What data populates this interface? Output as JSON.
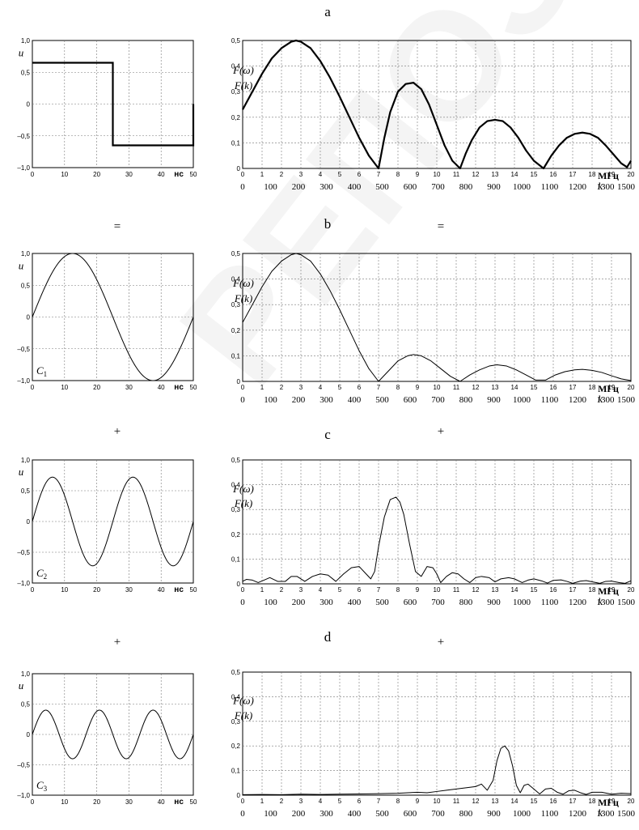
{
  "watermark": "РЕПОЗИТОРИЙ",
  "panel_labels": [
    "a",
    "b",
    "c",
    "d"
  ],
  "operators": {
    "row_b_left": "=",
    "row_b_right": "=",
    "row_c_left": "+",
    "row_c_right": "+",
    "row_d_left": "+",
    "row_d_right": "+"
  },
  "chart_data": [
    {
      "id": "a-time",
      "type": "line",
      "ylabel": "u",
      "unit": "нс",
      "xlim": [
        0,
        50
      ],
      "ylim": [
        -1.0,
        1.0
      ],
      "yticks": [
        "1,0",
        "0,5",
        "0",
        "–0,5",
        "–1,0"
      ],
      "xticks": [
        "0",
        "10",
        "20",
        "30",
        "40",
        "50"
      ],
      "grid": true,
      "series": [
        {
          "x": [
            0,
            25,
            25,
            50,
            50
          ],
          "y": [
            0.65,
            0.65,
            -0.65,
            -0.65,
            0.0
          ]
        }
      ],
      "stroke_width": 2.2
    },
    {
      "id": "a-spectrum",
      "type": "line",
      "ylabel": [
        "F(ω)",
        "F(k)"
      ],
      "unit": "МГц",
      "secondary_xlabel": "k",
      "xlim": [
        0,
        20
      ],
      "ylim": [
        0,
        0.5
      ],
      "yticks": [
        "0,5",
        "0,4",
        "0,3",
        "0,2",
        "0,1",
        "0"
      ],
      "xticks": [
        "0",
        "1",
        "2",
        "3",
        "4",
        "5",
        "6",
        "7",
        "8",
        "9",
        "10",
        "11",
        "12",
        "13",
        "14",
        "15",
        "16",
        "17",
        "18",
        "19",
        "20"
      ],
      "k_ticks": [
        "0",
        "100",
        "200",
        "300",
        "400",
        "500",
        "600",
        "700",
        "800",
        "900",
        "1000",
        "1100",
        "1200",
        "1300",
        "1500"
      ],
      "grid": true,
      "series": [
        {
          "x": [
            0,
            0.5,
            1,
            1.5,
            2,
            2.5,
            2.75,
            3,
            3.5,
            4,
            4.5,
            5,
            5.5,
            6,
            6.5,
            7,
            7.3,
            7.6,
            8,
            8.4,
            8.8,
            9.2,
            9.6,
            10,
            10.4,
            10.8,
            11.2,
            11.5,
            11.8,
            12.2,
            12.6,
            13,
            13.4,
            13.8,
            14.2,
            14.6,
            15,
            15.5,
            15.9,
            16.3,
            16.7,
            17.1,
            17.5,
            17.9,
            18.3,
            18.7,
            19.1,
            19.5,
            19.8,
            20
          ],
          "y": [
            0.23,
            0.3,
            0.37,
            0.43,
            0.47,
            0.495,
            0.5,
            0.495,
            0.47,
            0.42,
            0.355,
            0.28,
            0.2,
            0.12,
            0.05,
            0,
            0.12,
            0.22,
            0.3,
            0.33,
            0.335,
            0.31,
            0.25,
            0.17,
            0.09,
            0.03,
            0,
            0.06,
            0.11,
            0.16,
            0.185,
            0.19,
            0.185,
            0.16,
            0.12,
            0.07,
            0.03,
            0,
            0.05,
            0.09,
            0.12,
            0.135,
            0.14,
            0.135,
            0.12,
            0.09,
            0.055,
            0.02,
            0.005,
            0.03
          ]
        }
      ],
      "stroke_width": 2.2
    },
    {
      "id": "b-time",
      "type": "line",
      "ylabel": "u",
      "unit": "нс",
      "series_label": "C1",
      "xlim": [
        0,
        50
      ],
      "ylim": [
        -1.0,
        1.0
      ],
      "yticks": [
        "1,0",
        "0,5",
        "0",
        "–0,5",
        "–1,0"
      ],
      "xticks": [
        "0",
        "10",
        "20",
        "30",
        "40",
        "50"
      ],
      "grid": true,
      "series": [
        {
          "function": "sine",
          "amplitude": 1.0,
          "period": 50
        }
      ],
      "stroke_width": 1
    },
    {
      "id": "b-spectrum",
      "type": "line",
      "ylabel": [
        "F(ω)",
        "F(k)"
      ],
      "unit": "МГц",
      "secondary_xlabel": "k",
      "xlim": [
        0,
        20
      ],
      "ylim": [
        0,
        0.5
      ],
      "yticks": [
        "0,5",
        "0,4",
        "0,3",
        "0,2",
        "0,1",
        "0"
      ],
      "xticks": [
        "0",
        "1",
        "2",
        "3",
        "4",
        "5",
        "6",
        "7",
        "8",
        "9",
        "10",
        "11",
        "12",
        "13",
        "14",
        "15",
        "16",
        "17",
        "18",
        "19",
        "20"
      ],
      "k_ticks": [
        "0",
        "100",
        "200",
        "300",
        "400",
        "500",
        "600",
        "700",
        "800",
        "900",
        "1000",
        "1100",
        "1200",
        "1300",
        "1500"
      ],
      "grid": true,
      "series": [
        {
          "x": [
            0,
            0.5,
            1,
            1.5,
            2,
            2.5,
            2.75,
            3,
            3.5,
            4,
            4.5,
            5,
            5.5,
            6,
            6.5,
            7,
            7.5,
            8,
            8.5,
            8.8,
            9.2,
            9.7,
            10.2,
            10.7,
            11.2,
            11.7,
            12.2,
            12.7,
            13.1,
            13.6,
            14.1,
            14.6,
            15.1,
            15.6,
            16.1,
            16.6,
            17.1,
            17.5,
            18,
            18.5,
            19,
            19.5,
            20
          ],
          "y": [
            0.23,
            0.3,
            0.37,
            0.43,
            0.47,
            0.495,
            0.5,
            0.495,
            0.47,
            0.42,
            0.355,
            0.28,
            0.2,
            0.12,
            0.05,
            0,
            0.04,
            0.08,
            0.1,
            0.105,
            0.1,
            0.08,
            0.05,
            0.02,
            0,
            0.025,
            0.045,
            0.06,
            0.065,
            0.06,
            0.045,
            0.025,
            0.005,
            0.005,
            0.025,
            0.038,
            0.045,
            0.047,
            0.043,
            0.035,
            0.022,
            0.01,
            0.003
          ]
        }
      ],
      "stroke_width": 1
    },
    {
      "id": "c-time",
      "type": "line",
      "ylabel": "u",
      "unit": "нс",
      "series_label": "C2",
      "xlim": [
        0,
        50
      ],
      "ylim": [
        -1.0,
        1.0
      ],
      "yticks": [
        "1,0",
        "0,5",
        "0",
        "–0,5",
        "–1,0"
      ],
      "xticks": [
        "0",
        "10",
        "20",
        "30",
        "40",
        "50"
      ],
      "grid": true,
      "series": [
        {
          "function": "sine",
          "amplitude": 0.72,
          "period": 25
        }
      ],
      "stroke_width": 1
    },
    {
      "id": "c-spectrum",
      "type": "line",
      "ylabel": [
        "F(ω)",
        "F(k)"
      ],
      "unit": "МГц",
      "secondary_xlabel": "k",
      "xlim": [
        0,
        20
      ],
      "ylim": [
        0,
        0.5
      ],
      "yticks": [
        "0,5",
        "0,4",
        "0,3",
        "0,2",
        "0,1",
        "0"
      ],
      "xticks": [
        "0",
        "1",
        "2",
        "3",
        "4",
        "5",
        "6",
        "7",
        "8",
        "9",
        "10",
        "11",
        "12",
        "13",
        "14",
        "15",
        "16",
        "17",
        "18",
        "19",
        "20"
      ],
      "k_ticks": [
        "0",
        "100",
        "200",
        "300",
        "400",
        "500",
        "600",
        "700",
        "800",
        "900",
        "1000",
        "1100",
        "1200",
        "1300",
        "1500"
      ],
      "grid": true,
      "series": [
        {
          "x": [
            0,
            0.2,
            0.5,
            0.8,
            1.1,
            1.4,
            1.8,
            2.2,
            2.5,
            2.8,
            3.2,
            3.6,
            4,
            4.4,
            4.8,
            5.2,
            5.6,
            6,
            6.3,
            6.6,
            6.8,
            7,
            7.3,
            7.6,
            7.9,
            8.1,
            8.3,
            8.6,
            8.9,
            9.2,
            9.5,
            9.8,
            10,
            10.2,
            10.5,
            10.8,
            11.1,
            11.4,
            11.7,
            12,
            12.3,
            12.7,
            13,
            13.3,
            13.7,
            14,
            14.4,
            14.7,
            15,
            15.4,
            15.7,
            16,
            16.4,
            16.7,
            17,
            17.4,
            17.7,
            18,
            18.4,
            18.7,
            19,
            19.4,
            19.7,
            20
          ],
          "y": [
            0.01,
            0.018,
            0.015,
            0.005,
            0.015,
            0.025,
            0.01,
            0.01,
            0.03,
            0.03,
            0.01,
            0.03,
            0.04,
            0.035,
            0.01,
            0.04,
            0.065,
            0.07,
            0.045,
            0.02,
            0.05,
            0.15,
            0.27,
            0.34,
            0.35,
            0.33,
            0.28,
            0.16,
            0.05,
            0.03,
            0.07,
            0.065,
            0.04,
            0.005,
            0.03,
            0.045,
            0.04,
            0.02,
            0.005,
            0.025,
            0.03,
            0.025,
            0.008,
            0.02,
            0.025,
            0.02,
            0.005,
            0.015,
            0.02,
            0.012,
            0.003,
            0.014,
            0.016,
            0.01,
            0.002,
            0.011,
            0.013,
            0.008,
            0.002,
            0.01,
            0.011,
            0.005,
            0.002,
            0.012
          ]
        }
      ],
      "stroke_width": 1
    },
    {
      "id": "d-time",
      "type": "line",
      "ylabel": "u",
      "unit": "нс",
      "series_label": "C3",
      "xlim": [
        0,
        50
      ],
      "ylim": [
        -1.0,
        1.0
      ],
      "yticks": [
        "1,0",
        "0,5",
        "0",
        "–0,5",
        "–1,0"
      ],
      "xticks": [
        "0",
        "10",
        "20",
        "30",
        "40",
        "50"
      ],
      "grid": true,
      "series": [
        {
          "function": "sine",
          "amplitude": 0.4,
          "period": 16.667
        }
      ],
      "stroke_width": 1
    },
    {
      "id": "d-spectrum",
      "type": "line",
      "ylabel": [
        "F(ω)",
        "F(k)"
      ],
      "unit": "МГц",
      "secondary_xlabel": "k",
      "xlim": [
        0,
        20
      ],
      "ylim": [
        0,
        0.5
      ],
      "yticks": [
        "0,5",
        "0,4",
        "0,3",
        "0,2",
        "0,1",
        "0"
      ],
      "xticks": [
        "0",
        "1",
        "2",
        "3",
        "4",
        "5",
        "6",
        "7",
        "8",
        "9",
        "10",
        "11",
        "12",
        "13",
        "14",
        "15",
        "16",
        "17",
        "18",
        "19",
        "20"
      ],
      "k_ticks": [
        "0",
        "100",
        "200",
        "300",
        "400",
        "500",
        "600",
        "700",
        "800",
        "900",
        "1000",
        "1100",
        "1200",
        "1300",
        "1500"
      ],
      "grid": true,
      "series": [
        {
          "x": [
            0,
            1,
            2,
            3,
            4,
            5,
            6,
            7,
            8,
            8.5,
            9,
            9.5,
            10,
            10.5,
            11,
            11.5,
            12,
            12.3,
            12.6,
            12.9,
            13.1,
            13.3,
            13.5,
            13.7,
            13.9,
            14.1,
            14.3,
            14.5,
            14.7,
            15,
            15.3,
            15.6,
            15.9,
            16.2,
            16.5,
            16.8,
            17.1,
            17.4,
            17.7,
            18,
            18.5,
            19,
            19.5,
            20
          ],
          "y": [
            0.002,
            0.003,
            0.002,
            0.004,
            0.003,
            0.004,
            0.005,
            0.006,
            0.008,
            0.01,
            0.012,
            0.01,
            0.015,
            0.02,
            0.025,
            0.03,
            0.035,
            0.045,
            0.02,
            0.06,
            0.14,
            0.19,
            0.2,
            0.18,
            0.12,
            0.04,
            0.01,
            0.04,
            0.045,
            0.025,
            0.005,
            0.025,
            0.028,
            0.012,
            0.004,
            0.018,
            0.02,
            0.01,
            0.003,
            0.012,
            0.012,
            0.004,
            0.008,
            0.006
          ]
        }
      ],
      "stroke_width": 1
    }
  ]
}
